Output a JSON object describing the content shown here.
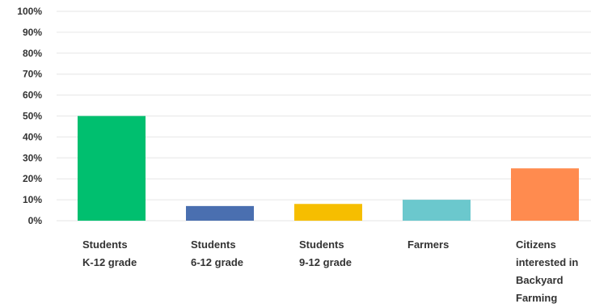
{
  "chart_data": {
    "type": "bar",
    "title": "",
    "xlabel": "",
    "ylabel": "",
    "ylim": [
      0,
      100
    ],
    "yticks": [
      "0%",
      "10%",
      "20%",
      "30%",
      "40%",
      "50%",
      "60%",
      "70%",
      "80%",
      "90%",
      "100%"
    ],
    "grid": true,
    "categories": [
      [
        "Students",
        "K-12 grade"
      ],
      [
        "Students",
        "6-12 grade"
      ],
      [
        "Students",
        "9-12 grade"
      ],
      [
        "Farmers"
      ],
      [
        "Citizens",
        "interested in",
        "Backyard",
        "Farming"
      ]
    ],
    "values": [
      50,
      7,
      8,
      10,
      25
    ],
    "colors": [
      "#00bf6f",
      "#4a6fb0",
      "#f6be00",
      "#6bc8cd",
      "#ff8b4f"
    ]
  }
}
